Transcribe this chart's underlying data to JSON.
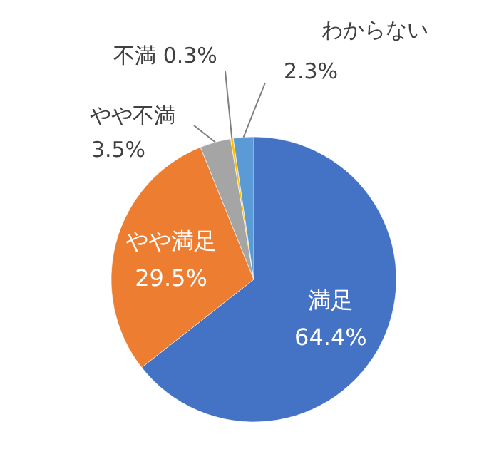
{
  "chart_data": {
    "type": "pie",
    "categories": [
      "満足",
      "やや満足",
      "やや不満",
      "不満",
      "わからない"
    ],
    "values": [
      64.4,
      29.5,
      3.5,
      0.3,
      2.3
    ],
    "colors": [
      "#4472c4",
      "#ed7d31",
      "#a5a5a5",
      "#ffc000",
      "#5b9bd5"
    ],
    "value_labels": [
      "64.4%",
      "29.5%",
      "3.5%",
      "0.3%",
      "2.3%"
    ],
    "legend": false
  }
}
